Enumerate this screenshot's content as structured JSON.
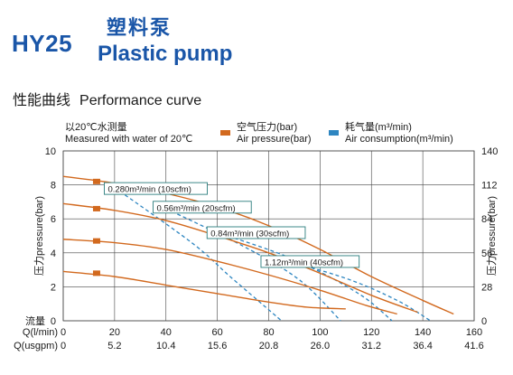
{
  "header": {
    "model": "HY25",
    "title_cn": "塑料泵",
    "title_en": "Plastic pump",
    "section_cn": "性能曲线",
    "section_en": "Performance curve",
    "note_cn": "以20℃水测量",
    "note_en": "Measured with water of 20℃"
  },
  "legend": {
    "air_pressure_cn": "空气压力(bar)",
    "air_pressure_en": "Air pressure(bar)",
    "air_consumption_cn": "耗气量(m³/min)",
    "air_consumption_en": "Air consumption(m³/min)"
  },
  "colors": {
    "brand": "#1a56a8",
    "pressure": "#d2691e",
    "consumption": "#2e86c1",
    "label_border": "#2a7d7d",
    "grid": "#444444"
  },
  "chart_data": {
    "type": "line",
    "xlim": [
      0,
      160
    ],
    "ylim_left": [
      0,
      10
    ],
    "ylim_right": [
      0,
      140
    ],
    "x_ticks": [
      0,
      20,
      40,
      60,
      80,
      100,
      120,
      140,
      160
    ],
    "x_ticks_usgpm": [
      "0",
      "5.2",
      "10.4",
      "15.6",
      "20.8",
      "26.0",
      "31.2",
      "36.4",
      "41.6"
    ],
    "y_ticks_left": [
      0,
      2,
      4,
      6,
      8,
      10
    ],
    "y_ticks_right": [
      0,
      28,
      56,
      84,
      112,
      140
    ],
    "xlabel_lpm": "Q(l/min)",
    "xlabel_usgpm": "Q(usgpm)",
    "xlabel_prefix": "流量",
    "ylabel_left": "压力pressure(bar)",
    "ylabel_right": "压力pressure(bar)",
    "grid": true,
    "pressure_markers": [
      {
        "x": 13,
        "y": 8.2
      },
      {
        "x": 13,
        "y": 6.6
      },
      {
        "x": 13,
        "y": 4.7
      },
      {
        "x": 13,
        "y": 2.8
      }
    ],
    "pressure_curves": [
      {
        "points": [
          [
            0,
            8.5
          ],
          [
            20,
            8.1
          ],
          [
            40,
            7.5
          ],
          [
            60,
            6.7
          ],
          [
            80,
            5.6
          ],
          [
            100,
            4.2
          ],
          [
            120,
            2.6
          ],
          [
            140,
            1.2
          ],
          [
            152,
            0.4
          ]
        ]
      },
      {
        "points": [
          [
            0,
            6.9
          ],
          [
            20,
            6.5
          ],
          [
            40,
            5.9
          ],
          [
            60,
            5.0
          ],
          [
            80,
            4.0
          ],
          [
            100,
            2.8
          ],
          [
            120,
            1.5
          ],
          [
            138,
            0.5
          ]
        ]
      },
      {
        "points": [
          [
            0,
            4.8
          ],
          [
            20,
            4.6
          ],
          [
            40,
            4.2
          ],
          [
            60,
            3.5
          ],
          [
            80,
            2.7
          ],
          [
            100,
            1.8
          ],
          [
            118,
            0.9
          ],
          [
            130,
            0.4
          ]
        ]
      },
      {
        "points": [
          [
            0,
            2.9
          ],
          [
            20,
            2.6
          ],
          [
            40,
            2.1
          ],
          [
            60,
            1.6
          ],
          [
            80,
            1.1
          ],
          [
            95,
            0.8
          ],
          [
            110,
            0.7
          ]
        ]
      }
    ],
    "consumption_curves": [
      {
        "points": [
          [
            18,
            8.05
          ],
          [
            50,
            4.6
          ],
          [
            65,
            2.6
          ],
          [
            85,
            0.0
          ]
        ]
      },
      {
        "points": [
          [
            40,
            6.6
          ],
          [
            70,
            4.4
          ],
          [
            92,
            2.4
          ],
          [
            108,
            0.0
          ]
        ]
      },
      {
        "points": [
          [
            62,
            5.1
          ],
          [
            90,
            3.6
          ],
          [
            115,
            1.6
          ],
          [
            128,
            0.0
          ]
        ]
      },
      {
        "points": [
          [
            80,
            3.85
          ],
          [
            110,
            2.5
          ],
          [
            130,
            1.2
          ],
          [
            143,
            0.0
          ]
        ]
      }
    ],
    "consumption_labels": [
      {
        "text": "0.280m³/min (10scfm)",
        "x": 16,
        "y": 7.6
      },
      {
        "text": "0.56m³/min (20scfm)",
        "x": 35,
        "y": 6.5
      },
      {
        "text": "0.84m³/min (30scfm)",
        "x": 56,
        "y": 5.0
      },
      {
        "text": "1.12m³/min (40scfm)",
        "x": 77,
        "y": 3.3
      }
    ]
  }
}
